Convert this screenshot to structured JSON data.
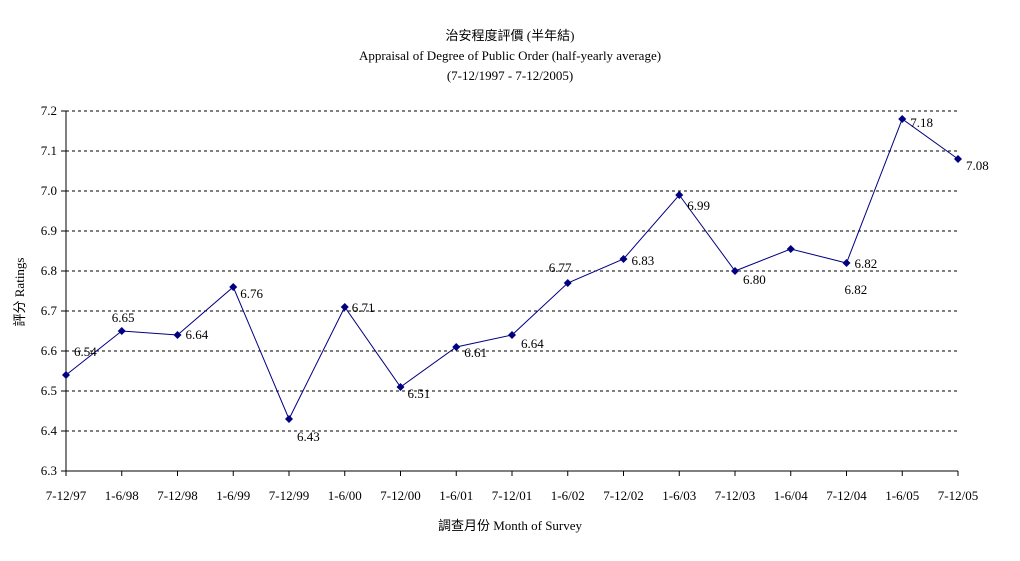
{
  "chart_data": {
    "type": "line",
    "title_lines": [
      "治安程度評價 (半年結)",
      "Appraisal of Degree of Public Order (half-yearly average)",
      "(7-12/1997 - 7-12/2005)"
    ],
    "xlabel": "調查月份 Month of Survey",
    "ylabel": "評分 Ratings",
    "ylim": [
      6.3,
      7.2
    ],
    "yticks": [
      "6.3",
      "6.4",
      "6.5",
      "6.6",
      "6.7",
      "6.8",
      "6.9",
      "7.0",
      "7.1",
      "7.2"
    ],
    "grid": "horizontal dashed",
    "legend": "none",
    "categories": [
      "7-12/97",
      "1-6/98",
      "7-12/98",
      "1-6/99",
      "7-12/99",
      "1-6/00",
      "7-12/00",
      "1-6/01",
      "7-12/01",
      "1-6/02",
      "7-12/02",
      "1-6/03",
      "7-12/03",
      "1-6/04",
      "7-12/04",
      "1-6/05",
      "7-12/05"
    ],
    "values": [
      6.54,
      6.65,
      6.64,
      6.76,
      6.43,
      6.71,
      6.51,
      6.61,
      6.64,
      6.77,
      6.83,
      6.99,
      6.8,
      6.855,
      6.82,
      7.18,
      7.08
    ],
    "data_labels": [
      "6.54",
      "6.65",
      "6.64",
      "6.76",
      "6.43",
      "6.71",
      "6.51",
      "6.61",
      "6.64",
      "6.77",
      "6.83",
      "6.99",
      "6.80",
      "",
      "6.82",
      "7.18",
      "7.08"
    ],
    "extra_annotations": [
      {
        "category_index": 14,
        "text": "6.82"
      }
    ],
    "colors": {
      "line": "#000080",
      "marker": "#000080",
      "grid": "#000000",
      "axis": "#000000"
    }
  }
}
